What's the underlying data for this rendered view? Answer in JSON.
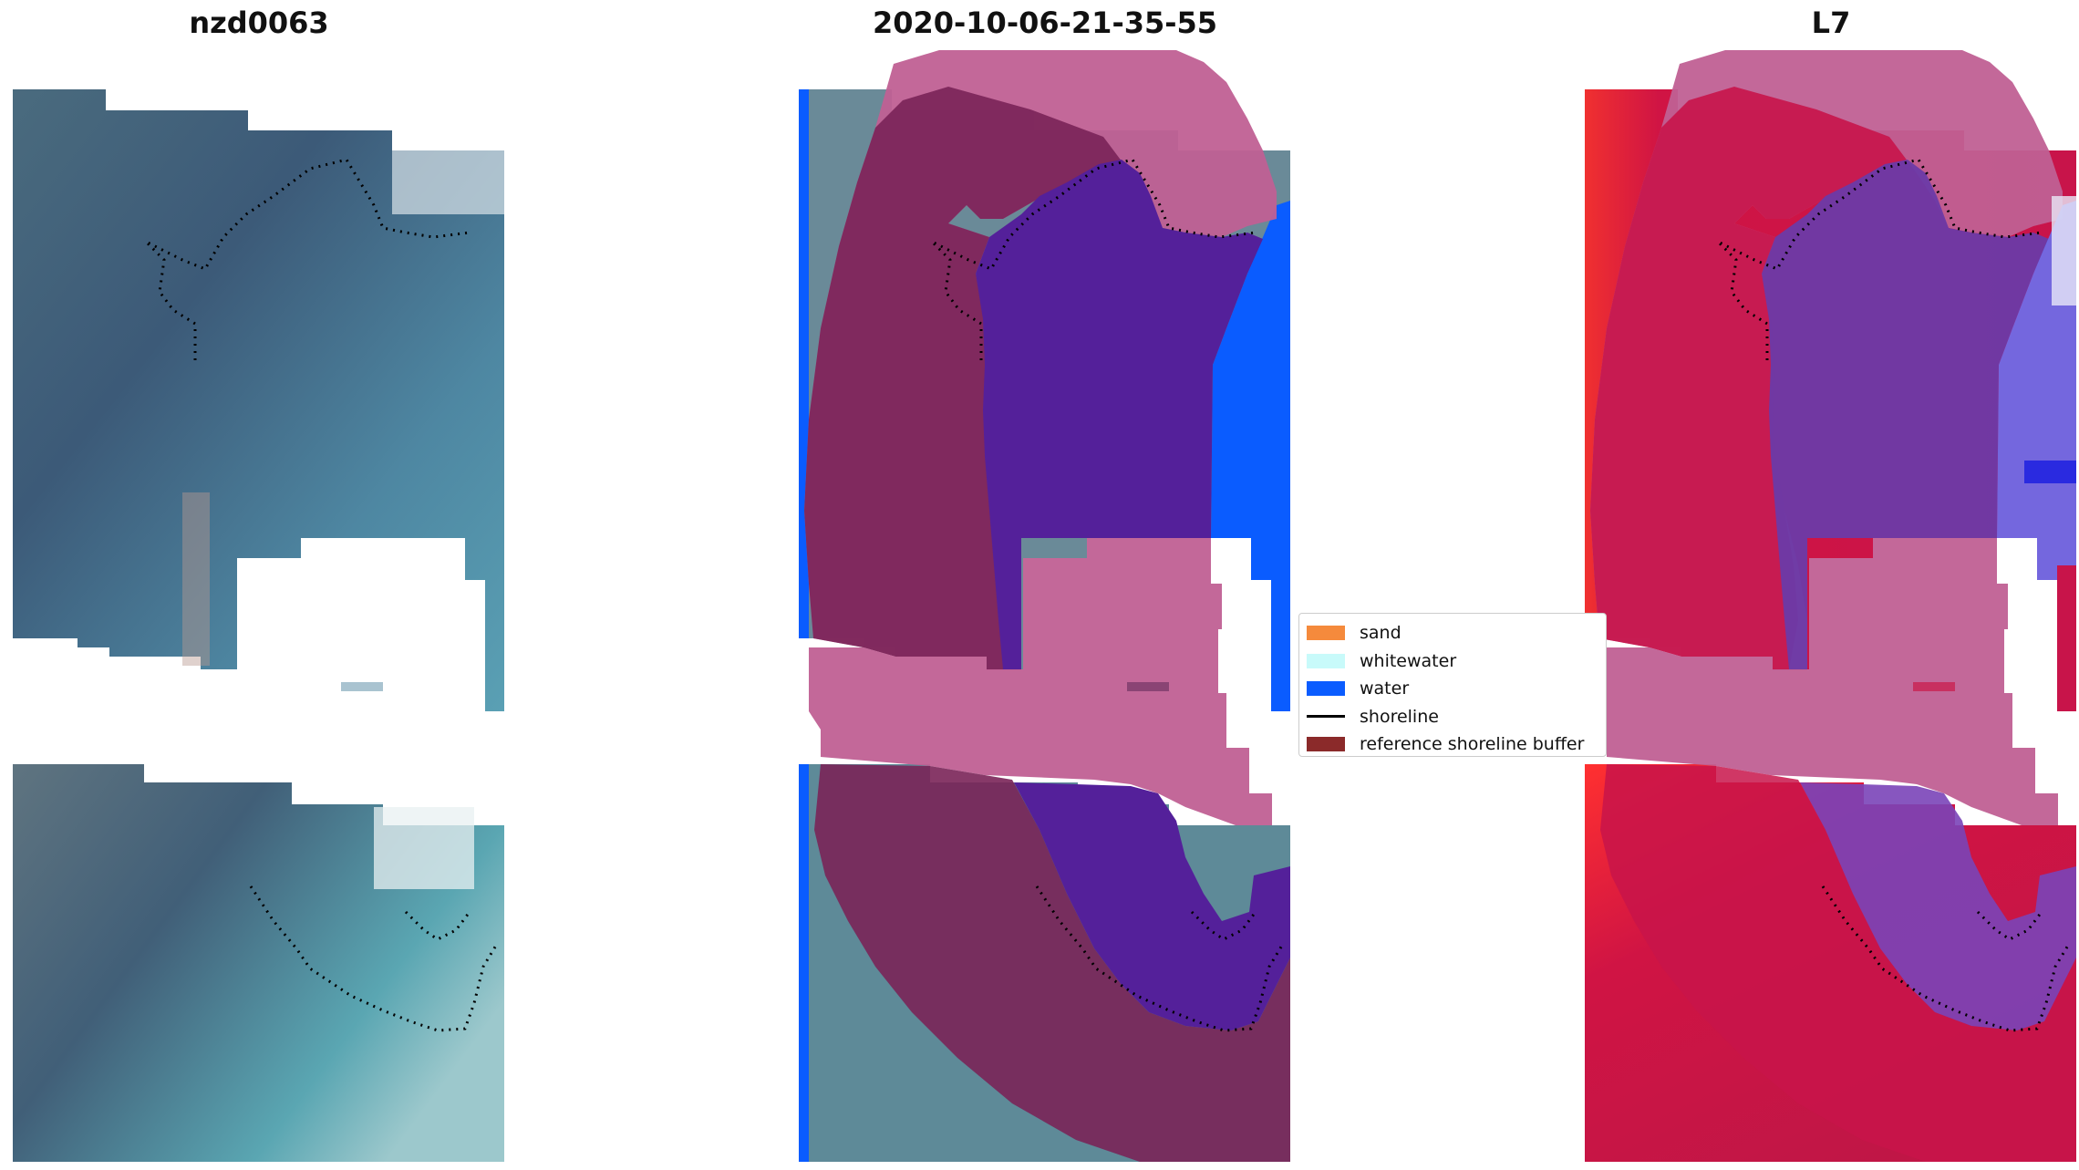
{
  "panels": [
    {
      "title": "nzd0063"
    },
    {
      "title": "2020-10-06-21-35-55"
    },
    {
      "title": "L7"
    }
  ],
  "legend": {
    "items": [
      {
        "label": "sand",
        "color": "#f58a3c",
        "kind": "patch"
      },
      {
        "label": "whitewater",
        "color": "#c8fafa",
        "kind": "patch"
      },
      {
        "label": "water",
        "color": "#0a5cff",
        "kind": "patch"
      },
      {
        "label": "shoreline",
        "color": "#000000",
        "kind": "line"
      },
      {
        "label": "reference shoreline buffer",
        "color": "#8b2a2a",
        "kind": "patch"
      }
    ]
  },
  "colors": {
    "rgb_dark": "#3f5a74",
    "rgb_teal": "#4f8ba3",
    "buffer_pink": "#c06094",
    "buffer_dark": "#7a2458",
    "water_class": "#0a5cff",
    "water_overlay": "#54209a",
    "index_red": "#d0143c",
    "index_purple": "#6b3aa8",
    "index_blue": "#4b5cf0"
  }
}
